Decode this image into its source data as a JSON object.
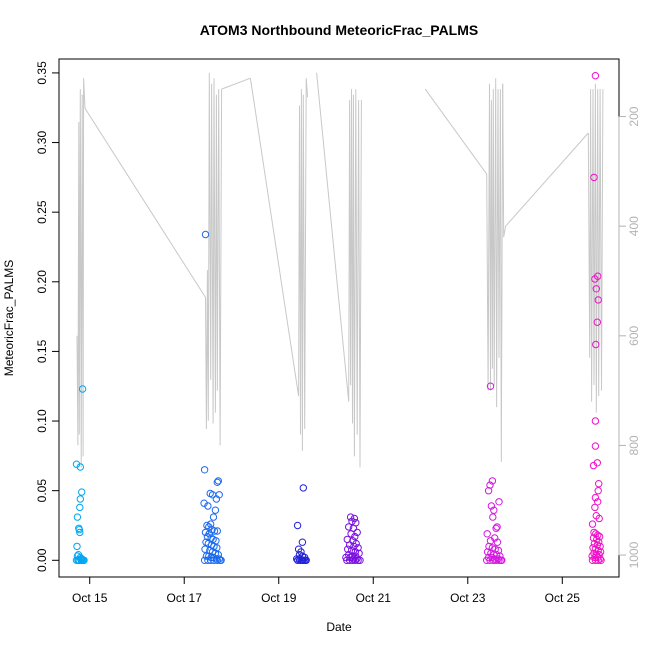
{
  "chart_data": {
    "type": "scatter",
    "title": "ATOM3 Northbound MeteoricFrac_PALMS",
    "xlabel": "Date",
    "ylabel": "MeteoricFrac_PALMS",
    "ylim": [
      -0.012,
      0.36
    ],
    "xlim": [
      14.35,
      26.2
    ],
    "x_ticks": [
      {
        "value": 15,
        "label": "Oct 15"
      },
      {
        "value": 17,
        "label": "Oct 17"
      },
      {
        "value": 19,
        "label": "Oct 19"
      },
      {
        "value": 21,
        "label": "Oct 21"
      },
      {
        "value": 23,
        "label": "Oct 23"
      },
      {
        "value": 25,
        "label": "Oct 25"
      }
    ],
    "y_ticks": [
      0.0,
      0.05,
      0.1,
      0.15,
      0.2,
      0.25,
      0.3,
      0.35
    ],
    "y_tick_labels": [
      "0.00",
      "0.05",
      "0.10",
      "0.15",
      "0.20",
      "0.25",
      "0.30",
      "0.35"
    ],
    "right_axis": {
      "ylim": [
        95,
        1040
      ],
      "inverted": true,
      "ticks": [
        200,
        400,
        600,
        800,
        1000
      ],
      "color": "#b3b3b3"
    },
    "grid": false,
    "legend": "none",
    "points_color_note": "color gradient by time: light blue -> blue -> purple -> magenta",
    "flights": [
      {
        "color": "#00a6f2",
        "points": [
          [
            14.72,
            0.069
          ],
          [
            14.8,
            0.067
          ],
          [
            14.83,
            0.049
          ],
          [
            14.8,
            0.044
          ],
          [
            14.79,
            0.038
          ],
          [
            14.74,
            0.031
          ],
          [
            14.77,
            0.023
          ],
          [
            14.79,
            0.02
          ],
          [
            14.78,
            0.022
          ],
          [
            14.73,
            0.01
          ],
          [
            14.76,
            0.004
          ],
          [
            14.74,
            0.003
          ],
          [
            14.8,
            0.002
          ],
          [
            14.83,
            0.001
          ],
          [
            14.86,
            0.0
          ],
          [
            14.72,
            0.0
          ],
          [
            14.75,
            0.0
          ],
          [
            14.78,
            0.0
          ],
          [
            14.82,
            0.0
          ],
          [
            14.84,
            0.0
          ],
          [
            14.88,
            0.0
          ],
          [
            14.77,
            0.0
          ],
          [
            14.81,
            0.001
          ],
          [
            14.85,
            0.123
          ]
        ]
      },
      {
        "color": "#1a6af0",
        "points": [
          [
            17.45,
            0.234
          ],
          [
            17.43,
            0.065
          ],
          [
            17.72,
            0.057
          ],
          [
            17.7,
            0.056
          ],
          [
            17.74,
            0.047
          ],
          [
            17.68,
            0.044
          ],
          [
            17.55,
            0.048
          ],
          [
            17.6,
            0.047
          ],
          [
            17.42,
            0.041
          ],
          [
            17.5,
            0.039
          ],
          [
            17.66,
            0.036
          ],
          [
            17.62,
            0.031
          ],
          [
            17.56,
            0.026
          ],
          [
            17.48,
            0.025
          ],
          [
            17.52,
            0.024
          ],
          [
            17.59,
            0.022
          ],
          [
            17.64,
            0.021
          ],
          [
            17.7,
            0.021
          ],
          [
            17.45,
            0.02
          ],
          [
            17.53,
            0.019
          ],
          [
            17.49,
            0.017
          ],
          [
            17.57,
            0.016
          ],
          [
            17.61,
            0.015
          ],
          [
            17.67,
            0.014
          ],
          [
            17.46,
            0.013
          ],
          [
            17.51,
            0.012
          ],
          [
            17.58,
            0.011
          ],
          [
            17.63,
            0.01
          ],
          [
            17.69,
            0.009
          ],
          [
            17.44,
            0.008
          ],
          [
            17.54,
            0.007
          ],
          [
            17.6,
            0.006
          ],
          [
            17.66,
            0.005
          ],
          [
            17.72,
            0.004
          ],
          [
            17.47,
            0.003
          ],
          [
            17.52,
            0.003
          ],
          [
            17.57,
            0.002
          ],
          [
            17.62,
            0.002
          ],
          [
            17.68,
            0.001
          ],
          [
            17.74,
            0.001
          ],
          [
            17.78,
            0.0
          ],
          [
            17.43,
            0.0
          ],
          [
            17.5,
            0.0
          ],
          [
            17.56,
            0.0
          ],
          [
            17.63,
            0.0
          ],
          [
            17.7,
            0.0
          ],
          [
            17.76,
            0.0
          ]
        ]
      },
      {
        "color": "#2222d6",
        "points": [
          [
            19.52,
            0.052
          ],
          [
            19.4,
            0.025
          ],
          [
            19.5,
            0.013
          ],
          [
            19.42,
            0.008
          ],
          [
            19.47,
            0.006
          ],
          [
            19.44,
            0.004
          ],
          [
            19.5,
            0.003
          ],
          [
            19.55,
            0.002
          ],
          [
            19.38,
            0.001
          ],
          [
            19.43,
            0.001
          ],
          [
            19.48,
            0.0
          ],
          [
            19.52,
            0.0
          ],
          [
            19.57,
            0.0
          ],
          [
            19.4,
            0.0
          ],
          [
            19.45,
            0.0
          ],
          [
            19.5,
            0.0
          ],
          [
            19.55,
            0.0
          ],
          [
            19.58,
            0.0
          ]
        ]
      },
      {
        "color": "#7a10e0",
        "points": [
          [
            20.52,
            0.031
          ],
          [
            20.6,
            0.03
          ],
          [
            20.55,
            0.028
          ],
          [
            20.63,
            0.027
          ],
          [
            20.48,
            0.024
          ],
          [
            20.58,
            0.023
          ],
          [
            20.66,
            0.02
          ],
          [
            20.53,
            0.019
          ],
          [
            20.61,
            0.017
          ],
          [
            20.45,
            0.015
          ],
          [
            20.57,
            0.014
          ],
          [
            20.64,
            0.012
          ],
          [
            20.5,
            0.011
          ],
          [
            20.59,
            0.01
          ],
          [
            20.68,
            0.009
          ],
          [
            20.46,
            0.008
          ],
          [
            20.54,
            0.007
          ],
          [
            20.62,
            0.006
          ],
          [
            20.7,
            0.005
          ],
          [
            20.48,
            0.004
          ],
          [
            20.56,
            0.003
          ],
          [
            20.63,
            0.003
          ],
          [
            20.42,
            0.002
          ],
          [
            20.51,
            0.002
          ],
          [
            20.58,
            0.001
          ],
          [
            20.65,
            0.001
          ],
          [
            20.44,
            0.0
          ],
          [
            20.5,
            0.0
          ],
          [
            20.56,
            0.0
          ],
          [
            20.62,
            0.0
          ],
          [
            20.68,
            0.0
          ],
          [
            20.72,
            0.0
          ]
        ]
      },
      {
        "color": "#d418e0",
        "points": [
          [
            23.48,
            0.125
          ],
          [
            23.52,
            0.057
          ],
          [
            23.47,
            0.054
          ],
          [
            23.44,
            0.05
          ],
          [
            23.66,
            0.042
          ],
          [
            23.5,
            0.039
          ],
          [
            23.55,
            0.036
          ],
          [
            23.53,
            0.031
          ],
          [
            23.62,
            0.024
          ],
          [
            23.6,
            0.023
          ],
          [
            23.41,
            0.019
          ],
          [
            23.57,
            0.016
          ],
          [
            23.48,
            0.014
          ],
          [
            23.63,
            0.013
          ],
          [
            23.45,
            0.01
          ],
          [
            23.52,
            0.009
          ],
          [
            23.58,
            0.008
          ],
          [
            23.65,
            0.007
          ],
          [
            23.42,
            0.006
          ],
          [
            23.49,
            0.005
          ],
          [
            23.55,
            0.004
          ],
          [
            23.61,
            0.004
          ],
          [
            23.68,
            0.003
          ],
          [
            23.44,
            0.002
          ],
          [
            23.51,
            0.002
          ],
          [
            23.57,
            0.001
          ],
          [
            23.64,
            0.001
          ],
          [
            23.7,
            0.0
          ],
          [
            23.4,
            0.0
          ],
          [
            23.47,
            0.0
          ],
          [
            23.54,
            0.0
          ],
          [
            23.6,
            0.0
          ],
          [
            23.66,
            0.0
          ],
          [
            23.72,
            0.0
          ]
        ]
      },
      {
        "color": "#f010c8",
        "points": [
          [
            25.7,
            0.348
          ],
          [
            25.67,
            0.275
          ],
          [
            25.75,
            0.204
          ],
          [
            25.69,
            0.202
          ],
          [
            25.72,
            0.195
          ],
          [
            25.76,
            0.187
          ],
          [
            25.74,
            0.171
          ],
          [
            25.71,
            0.155
          ],
          [
            25.7,
            0.1
          ],
          [
            25.7,
            0.082
          ],
          [
            25.74,
            0.07
          ],
          [
            25.66,
            0.068
          ],
          [
            25.77,
            0.055
          ],
          [
            25.76,
            0.05
          ],
          [
            25.7,
            0.045
          ],
          [
            25.75,
            0.042
          ],
          [
            25.69,
            0.038
          ],
          [
            25.64,
            0.026
          ],
          [
            25.72,
            0.032
          ],
          [
            25.78,
            0.03
          ],
          [
            25.67,
            0.02
          ],
          [
            25.71,
            0.019
          ],
          [
            25.75,
            0.018
          ],
          [
            25.79,
            0.017
          ],
          [
            25.66,
            0.016
          ],
          [
            25.73,
            0.015
          ],
          [
            25.77,
            0.013
          ],
          [
            25.68,
            0.012
          ],
          [
            25.74,
            0.011
          ],
          [
            25.8,
            0.01
          ],
          [
            25.65,
            0.009
          ],
          [
            25.7,
            0.008
          ],
          [
            25.76,
            0.007
          ],
          [
            25.81,
            0.006
          ],
          [
            25.67,
            0.005
          ],
          [
            25.72,
            0.004
          ],
          [
            25.78,
            0.004
          ],
          [
            25.63,
            0.003
          ],
          [
            25.69,
            0.002
          ],
          [
            25.75,
            0.002
          ],
          [
            25.8,
            0.001
          ],
          [
            25.64,
            0.0
          ],
          [
            25.7,
            0.0
          ],
          [
            25.76,
            0.0
          ],
          [
            25.82,
            0.0
          ]
        ]
      }
    ],
    "pressure_series": {
      "name": "",
      "color": "#c8c8c8",
      "segments": [
        [
          [
            14.73,
            600
          ],
          [
            14.75,
            800
          ],
          [
            14.77,
            210
          ],
          [
            14.78,
            780
          ],
          [
            14.8,
            150
          ],
          [
            14.82,
            840
          ],
          [
            14.84,
            160
          ],
          [
            14.86,
            820
          ],
          [
            14.87,
            130
          ],
          [
            14.9,
            185
          ]
        ],
        [
          [
            14.9,
            185
          ],
          [
            17.45,
            530
          ]
        ],
        [
          [
            17.45,
            530
          ],
          [
            17.47,
            770
          ],
          [
            17.49,
            480
          ],
          [
            17.51,
            755
          ],
          [
            17.53,
            120
          ],
          [
            17.56,
            680
          ],
          [
            17.58,
            140
          ],
          [
            17.61,
            760
          ],
          [
            17.63,
            130
          ],
          [
            17.66,
            740
          ],
          [
            17.68,
            160
          ],
          [
            17.7,
            700
          ],
          [
            17.73,
            150
          ],
          [
            17.76,
            800
          ],
          [
            17.79,
            150
          ]
        ],
        [
          [
            17.79,
            150
          ],
          [
            18.4,
            130
          ]
        ],
        [
          [
            18.4,
            130
          ],
          [
            19.42,
            710
          ],
          [
            19.44,
            180
          ],
          [
            19.46,
            780
          ],
          [
            19.48,
            150
          ],
          [
            19.5,
            810
          ],
          [
            19.52,
            160
          ],
          [
            19.55,
            770
          ],
          [
            19.58,
            130
          ],
          [
            19.61,
            165
          ]
        ],
        [
          [
            19.8,
            120
          ],
          [
            20.48,
            720
          ],
          [
            20.5,
            170
          ],
          [
            20.52,
            690
          ],
          [
            20.54,
            150
          ],
          [
            20.56,
            760
          ],
          [
            20.58,
            160
          ],
          [
            20.6,
            820
          ],
          [
            20.63,
            150
          ],
          [
            20.66,
            780
          ],
          [
            20.69,
            170
          ],
          [
            20.72,
            840
          ],
          [
            20.75,
            170
          ]
        ],
        [
          [
            22.1,
            150
          ],
          [
            23.4,
            305
          ],
          [
            23.43,
            700
          ],
          [
            23.46,
            140
          ],
          [
            23.48,
            700
          ],
          [
            23.5,
            170
          ],
          [
            23.52,
            660
          ],
          [
            23.54,
            150
          ],
          [
            23.56,
            690
          ],
          [
            23.59,
            130
          ],
          [
            23.61,
            730
          ],
          [
            23.64,
            150
          ],
          [
            23.66,
            640
          ],
          [
            23.69,
            150
          ],
          [
            23.71,
            830
          ],
          [
            23.74,
            140
          ]
        ],
        [
          [
            23.74,
            140
          ],
          [
            23.76,
            420
          ],
          [
            23.8,
            400
          ],
          [
            25.55,
            230
          ]
        ],
        [
          [
            25.55,
            230
          ],
          [
            25.58,
            640
          ],
          [
            25.6,
            150
          ],
          [
            25.62,
            720
          ],
          [
            25.65,
            150
          ],
          [
            25.67,
            690
          ],
          [
            25.7,
            140
          ],
          [
            25.72,
            740
          ],
          [
            25.75,
            150
          ],
          [
            25.77,
            710
          ],
          [
            25.8,
            150
          ],
          [
            25.83,
            700
          ],
          [
            25.86,
            150
          ]
        ]
      ]
    }
  }
}
